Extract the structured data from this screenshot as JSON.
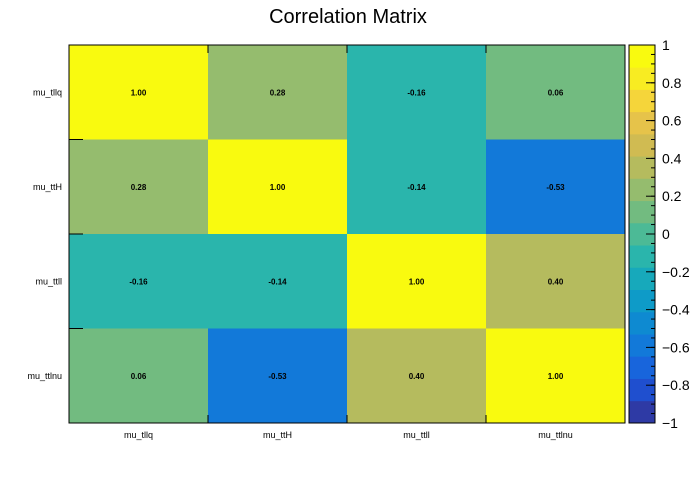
{
  "chart_data": {
    "type": "heatmap",
    "title": "Correlation Matrix",
    "x_categories": [
      "mu_tllq",
      "mu_ttH",
      "mu_ttll",
      "mu_ttlnu"
    ],
    "y_categories": [
      "mu_tllq",
      "mu_ttH",
      "mu_ttll",
      "mu_ttlnu"
    ],
    "values": [
      [
        1.0,
        0.28,
        -0.16,
        0.06
      ],
      [
        0.28,
        1.0,
        -0.14,
        -0.53
      ],
      [
        -0.16,
        -0.14,
        1.0,
        0.4
      ],
      [
        0.06,
        -0.53,
        0.4,
        1.0
      ]
    ],
    "cell_labels": [
      [
        "1.00",
        "0.28",
        "-0.16",
        "0.06"
      ],
      [
        "0.28",
        "1.00",
        "-0.14",
        "-0.53"
      ],
      [
        "-0.16",
        "-0.14",
        "1.00",
        "0.40"
      ],
      [
        "0.06",
        "-0.53",
        "0.40",
        "1.00"
      ]
    ],
    "zlim": [
      -1,
      1
    ],
    "colorbar_ticks": [
      "1",
      "0.8",
      "0.6",
      "0.4",
      "0.2",
      "0",
      "−0.2",
      "−0.4",
      "−0.6",
      "−0.8",
      "−1"
    ],
    "colorbar_tick_values": [
      1,
      0.8,
      0.6,
      0.4,
      0.2,
      0,
      -0.2,
      -0.4,
      -0.6,
      -0.8,
      -1
    ],
    "palette": [
      "#2e3aa5",
      "#1f4fcf",
      "#1865dc",
      "#1279d9",
      "#0e8ad1",
      "#0e9bc8",
      "#17a9bb",
      "#2ab5ac",
      "#4cba96",
      "#72bb80",
      "#95bc6e",
      "#b5bb5e",
      "#d0bb52",
      "#e6c34a",
      "#f5d53a",
      "#f8ec22",
      "#f9fa0f"
    ],
    "colorbar": "right",
    "grid": false
  }
}
